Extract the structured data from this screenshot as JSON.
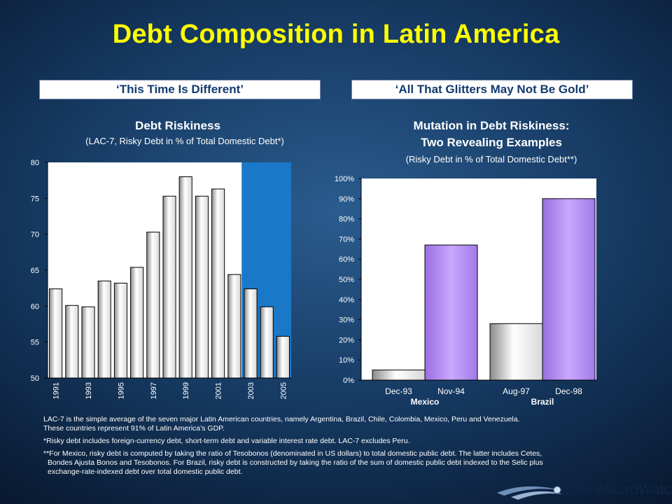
{
  "title": "Debt Composition in Latin America",
  "banners": {
    "left": "‘This Time Is Different’",
    "right": "‘All That Glitters May Not Be Gold’"
  },
  "left_chart": {
    "title": "Debt Riskiness",
    "subtitle": "(LAC-7, Risky Debt in % of Total Domestic Debt*)"
  },
  "right_chart": {
    "title_line1": "Mutation in Debt Riskiness:",
    "title_line2": "Two Revealing Examples",
    "subtitle": "(Risky Debt in % of Total Domestic Debt**)"
  },
  "chart_data": [
    {
      "type": "bar",
      "title": "Debt Riskiness",
      "subtitle": "(LAC-7, Risky Debt in % of Total Domestic Debt*)",
      "categories": [
        "1991",
        "1992",
        "1993",
        "1994",
        "1995",
        "1996",
        "1997",
        "1998",
        "1999",
        "2000",
        "2001",
        "2002",
        "2003",
        "2004",
        "2005"
      ],
      "tick_labels": [
        "1991",
        "1993",
        "1995",
        "1997",
        "1999",
        "2001",
        "2003",
        "2005"
      ],
      "values": [
        62.4,
        60.1,
        59.9,
        63.5,
        63.2,
        65.4,
        70.3,
        75.3,
        78.0,
        75.3,
        76.3,
        64.4,
        62.4,
        59.9,
        55.8
      ],
      "ylim": [
        50,
        80
      ],
      "yticks": [
        50,
        55,
        60,
        65,
        70,
        75,
        80
      ],
      "highlight_from": "2003",
      "colors": {
        "bar": "#f2f2f2",
        "highlight": "#1a78c8"
      }
    },
    {
      "type": "bar",
      "title": "Mutation in Debt Riskiness: Two Revealing Examples",
      "subtitle": "(Risky Debt in % of Total Domestic Debt**)",
      "categories": [
        "Dec-93",
        "Nov-94",
        "Aug-97",
        "Dec-98"
      ],
      "groups": [
        "Mexico",
        "Brazil"
      ],
      "values": [
        5,
        67,
        28,
        90
      ],
      "data_labels": [
        "5%",
        "67%",
        "28%",
        "90%"
      ],
      "ylim": [
        0,
        100
      ],
      "yticks": [
        "0%",
        "10%",
        "20%",
        "30%",
        "40%",
        "50%",
        "60%",
        "70%",
        "80%",
        "90%",
        "100%"
      ],
      "colors": {
        "before": "#e6e6e6",
        "after": "#b48cf0"
      }
    }
  ],
  "footnotes": {
    "note1_line1": "LAC-7 is the simple average of the seven major Latin American countries, namely Argentina, Brazil, Chile, Colombia, Mexico, Peru and Venezuela.",
    "note1_line2": "These countries represent 91% of Latin America’s GDP.",
    "note2": "*Risky debt includes foreign-currency debt, short-term debt and variable interest rate debt. LAC-7 excludes Peru.",
    "note3_line1": "**For Mexico, risky debt is computed by taking the ratio of Tesobonos (denominated in US dollars) to total domestic public debt. The latter includes Cetes,",
    "note3_line2": "Bondes Ajusta Bonos and Tesobonos. For Brazil, risky debt is constructed by taking the ratio of the sum of domestic public debt indexed to the Selic plus",
    "note3_line3": "exchange-rate-indexed debt over total domestic public debt."
  },
  "logo": {
    "text": "LatinMacroWatch",
    "icon": "globe-swoosh-icon"
  }
}
